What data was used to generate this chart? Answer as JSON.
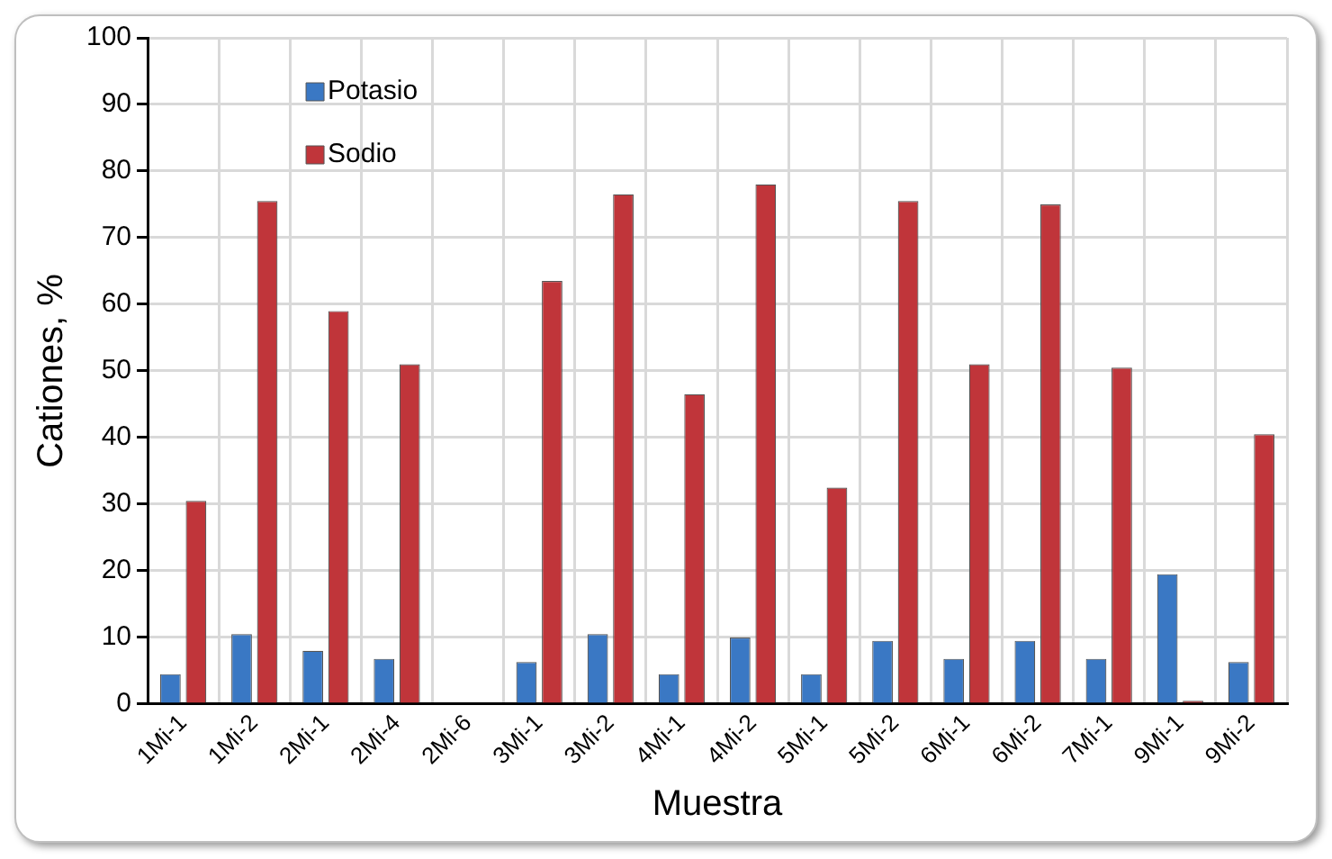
{
  "chart_data": {
    "type": "bar",
    "xlabel": "Muestra",
    "ylabel": "Cationes, %",
    "categories": [
      "1Mi-1",
      "1Mi-2",
      "2Mi-1",
      "2Mi-4",
      "2Mi-6",
      "3Mi-1",
      "3Mi-2",
      "4Mi-1",
      "4Mi-2",
      "5Mi-1",
      "5Mi-2",
      "6Mi-1",
      "6Mi-2",
      "7Mi-1",
      "9Mi-1",
      "9Mi-2"
    ],
    "series": [
      {
        "name": "Potasio",
        "color": "#3a78c4",
        "values": [
          4.5,
          10.5,
          8,
          6.8,
          null,
          6.3,
          10.5,
          4.5,
          10,
          4.5,
          9.5,
          6.8,
          9.5,
          6.8,
          19.5,
          6.3
        ]
      },
      {
        "name": "Sodio",
        "color": "#c0353a",
        "values": [
          30.5,
          75.5,
          59,
          51,
          null,
          63.5,
          76.5,
          46.5,
          78,
          32.5,
          75.5,
          51,
          75,
          50.5,
          0.5,
          40.5
        ]
      }
    ],
    "ylim": [
      0,
      100
    ],
    "yticks": [
      0,
      10,
      20,
      30,
      40,
      50,
      60,
      70,
      80,
      90,
      100
    ],
    "grid": true,
    "legend": "top left"
  }
}
